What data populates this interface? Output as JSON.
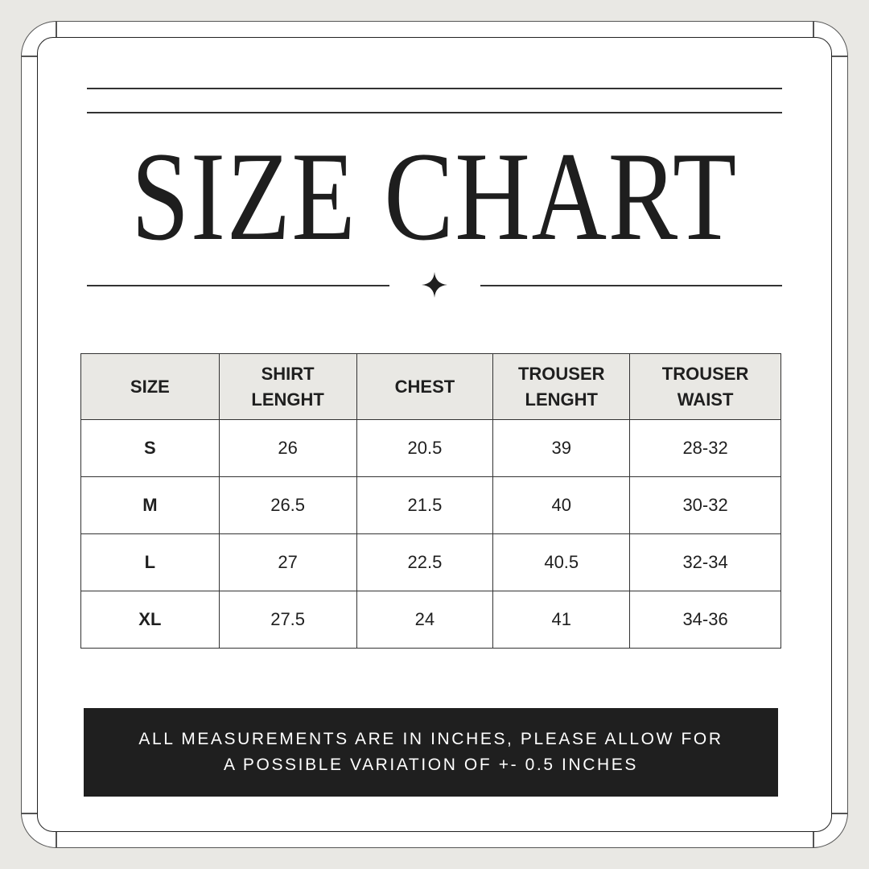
{
  "title": "SIZE CHART",
  "table": {
    "headers": [
      [
        "SIZE",
        ""
      ],
      [
        "SHIRT",
        "LENGHT"
      ],
      [
        "CHEST",
        ""
      ],
      [
        "TROUSER",
        "LENGHT"
      ],
      [
        "TROUSER",
        "WAIST"
      ]
    ],
    "rows": [
      [
        "S",
        "26",
        "20.5",
        "39",
        "28-32"
      ],
      [
        "M",
        "26.5",
        "21.5",
        "40",
        "30-32"
      ],
      [
        "L",
        "27",
        "22.5",
        "40.5",
        "32-34"
      ],
      [
        "XL",
        "27.5",
        "24",
        "41",
        "34-36"
      ]
    ]
  },
  "note": {
    "line1": "ALL MEASUREMENTS ARE IN INCHES, PLEASE ALLOW FOR",
    "line2": "A POSSIBLE VARIATION OF +- 0.5 INCHES"
  },
  "colors": {
    "background": "#e9e8e4",
    "banner": "#1f1f1f",
    "header_fill": "#e9e8e4"
  },
  "icons": {
    "divider": "four-point-star-icon"
  }
}
